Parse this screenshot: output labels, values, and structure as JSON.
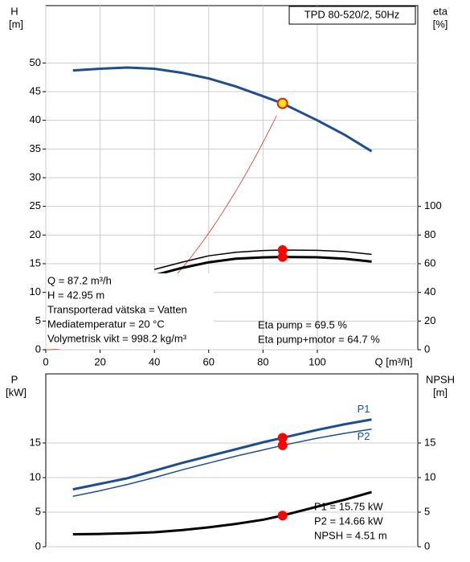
{
  "chart_data": [
    {
      "type": "line",
      "title": "TPD 80-520/2, 50Hz",
      "x_label": "Q [m³/h]",
      "y_label": "H",
      "y_unit": "[m]",
      "y2_label": "eta",
      "y2_unit": "[%]",
      "xlim": [
        0,
        137
      ],
      "xticks": [
        0,
        20,
        40,
        60,
        80,
        100
      ],
      "ylim": [
        0,
        60
      ],
      "yticks": [
        0,
        5,
        10,
        15,
        20,
        25,
        30,
        35,
        40,
        45,
        50
      ],
      "y2lim": [
        0,
        240
      ],
      "y2ticks": [
        0,
        20,
        40,
        60,
        80,
        100
      ],
      "grid": true,
      "x": [
        10,
        20,
        30,
        40,
        50,
        60,
        70,
        80,
        87.2,
        100,
        110,
        120
      ],
      "series": [
        {
          "color": "#1f4e8c",
          "values": [
            48.7,
            49.0,
            49.2,
            49.0,
            48.3,
            47.3,
            45.9,
            44.2,
            42.95,
            40.0,
            37.5,
            34.6
          ]
        },
        {
          "color": "#000000",
          "axis": "y2",
          "values": [
            null,
            null,
            null,
            56,
            61,
            65.5,
            68,
            69.2,
            69.5,
            69.3,
            68.5,
            66.5
          ]
        },
        {
          "color": "#000000",
          "axis": "y2",
          "values": [
            null,
            null,
            null,
            52,
            57,
            61,
            63.5,
            64.4,
            64.7,
            64.5,
            63.5,
            61.5
          ]
        }
      ],
      "annotations": [
        "Q = 87.2 m³/h",
        "H = 42.95 m",
        "Transporterad vätska = Vatten",
        "Mediatemperatur = 20 °C",
        "Volymetrisk vikt = 998.2 kg/m³",
        "Eta pump = 69.5 %",
        "Eta pump+motor = 64.7 %"
      ]
    },
    {
      "type": "line",
      "y_label": "P",
      "y_unit": "[kW]",
      "y2_label": "NPSH",
      "y2_unit": "[m]",
      "xlim": [
        0,
        137
      ],
      "ylim": [
        0,
        25
      ],
      "yticks": [
        0,
        5,
        10,
        15
      ],
      "y2lim": [
        0,
        25
      ],
      "y2ticks": [
        0,
        5,
        10,
        15
      ],
      "grid": true,
      "x": [
        10,
        20,
        30,
        40,
        50,
        60,
        70,
        80,
        87.2,
        100,
        110,
        120
      ],
      "series": [
        {
          "name": "P1",
          "color": "#1f4e8c",
          "values": [
            8.3,
            9.1,
            9.9,
            11.0,
            12.1,
            13.1,
            14.1,
            15.1,
            15.75,
            16.9,
            17.7,
            18.4
          ]
        },
        {
          "name": "P2",
          "color": "#1f4e8c",
          "values": [
            7.3,
            8.1,
            9.0,
            10.0,
            11.1,
            12.1,
            13.1,
            14.0,
            14.66,
            15.7,
            16.4,
            17.0
          ]
        },
        {
          "color": "#000000",
          "axis": "y2",
          "values": [
            1.8,
            1.85,
            1.95,
            2.1,
            2.4,
            2.8,
            3.3,
            3.9,
            4.51,
            5.8,
            6.8,
            7.9
          ]
        }
      ],
      "annotations": [
        "P1 = 15.75 kW",
        "P2 = 14.66 kW",
        "NPSH = 4.51 m"
      ]
    }
  ]
}
